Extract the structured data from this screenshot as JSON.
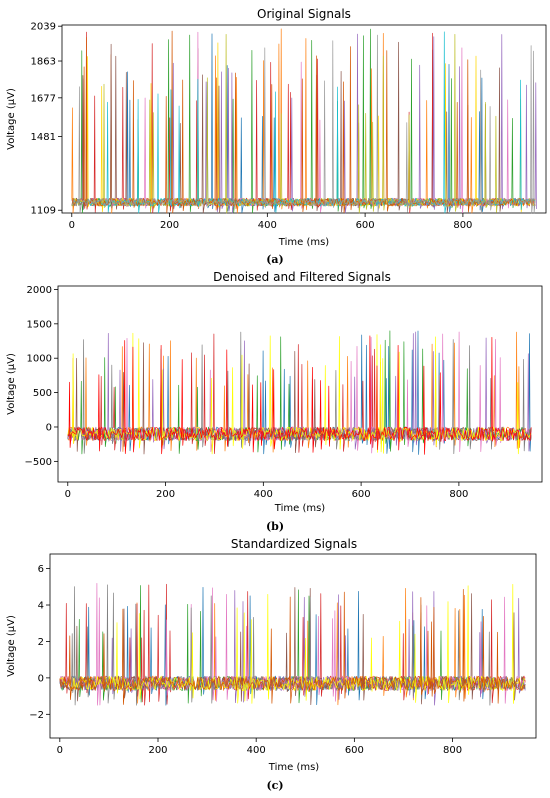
{
  "chart_data": [
    {
      "type": "line",
      "title": "Original Signals",
      "xlabel": "Time (ms)",
      "ylabel": "Voltage (µV)",
      "panel_label": "(a)",
      "xlim": [
        -20,
        970
      ],
      "ylim": [
        1095,
        2045
      ],
      "xticks": [
        0,
        200,
        400,
        600,
        800
      ],
      "yticks": [
        1109,
        1481,
        1677,
        1863,
        2039
      ],
      "grid": false,
      "series_colors": [
        "#1f77b4",
        "#ff7f0e",
        "#2ca02c",
        "#d62728",
        "#9467bd",
        "#8c564b",
        "#e377c2",
        "#ffd700",
        "#bcbd22",
        "#17becf",
        "#d45500",
        "#999999"
      ],
      "baseline": 1150,
      "spike_amplitude": 880,
      "noise_amplitude": 40
    },
    {
      "type": "line",
      "title": "Denoised and Filtered Signals",
      "xlabel": "Time (ms)",
      "ylabel": "Voltage (µV)",
      "panel_label": "(b)",
      "xlim": [
        -20,
        970
      ],
      "ylim": [
        -800,
        2050
      ],
      "xticks": [
        0,
        200,
        400,
        600,
        800
      ],
      "yticks": [
        -500,
        0,
        500,
        1000,
        1500,
        2000
      ],
      "grid": false,
      "series_colors": [
        "#1f77b4",
        "#ff7f0e",
        "#2ca02c",
        "#d62728",
        "#9467bd",
        "#8c564b",
        "#e377c2",
        "#7f7f7f",
        "#ffff00",
        "#ff0000"
      ],
      "baseline": -100,
      "spike_amplitude": 1500,
      "noise_amplitude": 200
    },
    {
      "type": "line",
      "title": "Standardized Signals",
      "xlabel": "Time (ms)",
      "ylabel": "Voltage (µV)",
      "panel_label": "(c)",
      "xlim": [
        -20,
        970
      ],
      "ylim": [
        -3.3,
        6.8
      ],
      "xticks": [
        0,
        200,
        400,
        600,
        800
      ],
      "yticks": [
        -2,
        0,
        2,
        4,
        6
      ],
      "grid": false,
      "series_colors": [
        "#1f77b4",
        "#ff7f0e",
        "#2ca02c",
        "#d62728",
        "#9467bd",
        "#8c564b",
        "#e377c2",
        "#7f7f7f",
        "#ffff00",
        "#d45500"
      ],
      "baseline": -0.3,
      "spike_amplitude": 5.5,
      "noise_amplitude": 0.8
    }
  ]
}
